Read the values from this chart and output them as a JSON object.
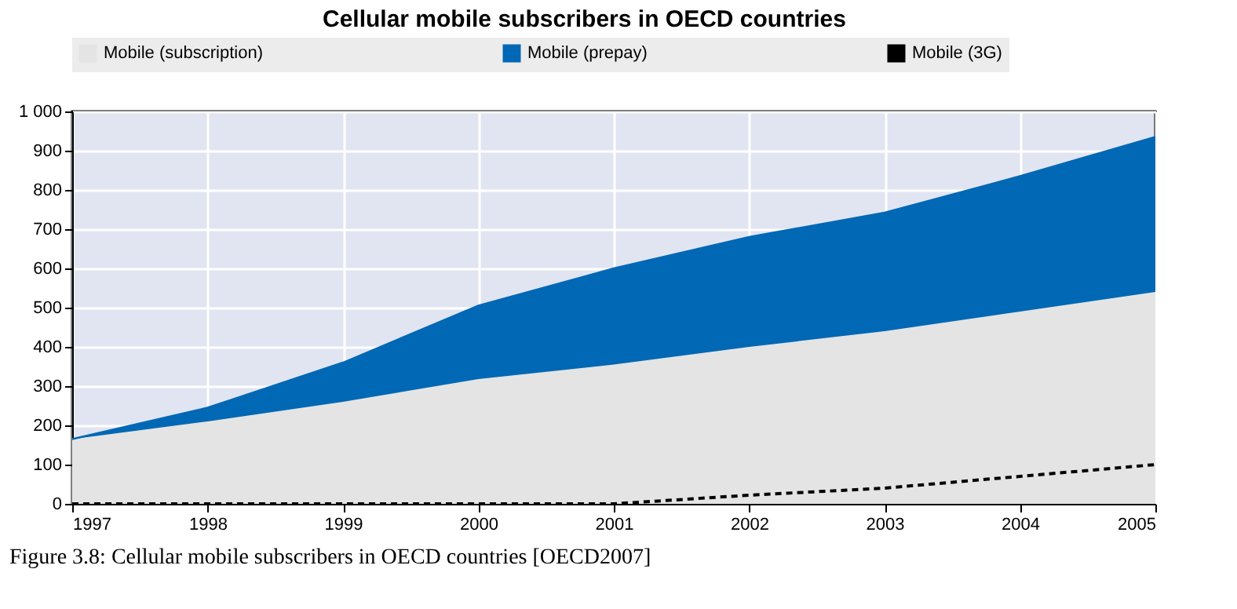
{
  "chart_data": {
    "type": "area",
    "stacked": true,
    "title": "Cellular mobile subscribers in OECD countries",
    "annotations": [
      "Figure 3.8: Cellular mobile subscribers in OECD countries [OECD2007]"
    ],
    "x": [
      1997,
      1998,
      1999,
      2000,
      2001,
      2002,
      2003,
      2004,
      2005
    ],
    "series": [
      {
        "name": "Mobile (subscription)",
        "color": "#e4e4e4",
        "values": [
          165,
          210,
          260,
          318,
          355,
          400,
          440,
          490,
          540
        ]
      },
      {
        "name": "Mobile (prepay)",
        "color": "#0068b4",
        "values": [
          0,
          35,
          100,
          187,
          245,
          280,
          302,
          345,
          395
        ]
      },
      {
        "name": "Mobile (3G)",
        "type": "line",
        "line_style": "dashed",
        "color": "#000000",
        "values": [
          0,
          0,
          0,
          0,
          0,
          22,
          40,
          70,
          100
        ]
      }
    ],
    "xlim": [
      1997,
      2005
    ],
    "xticks": [
      1997,
      1998,
      1999,
      2000,
      2001,
      2002,
      2003,
      2004,
      2005
    ],
    "ylim": [
      0,
      1000
    ],
    "yticks": [
      0,
      100,
      200,
      300,
      400,
      500,
      600,
      700,
      800,
      900,
      {
        "value": 1000,
        "label": "1 000"
      }
    ],
    "grid": true,
    "legend": "top"
  }
}
